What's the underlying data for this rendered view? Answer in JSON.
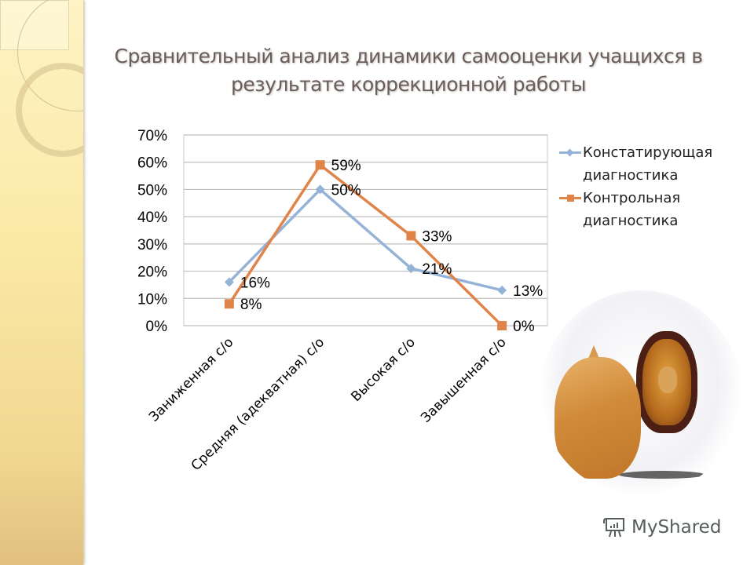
{
  "slide": {
    "title": "Сравнительный анализ динамики самооценки учащихся в результате коррекционной работы",
    "title_line1": "Сравнительный анализ динамики самооценки учащихся в",
    "title_line2": "результате коррекционной работы"
  },
  "legend": {
    "items": [
      {
        "label_line1": "Констатирующая",
        "label_line2": "диагностика",
        "color": "#95b3d7",
        "marker": "diamond"
      },
      {
        "label_line1": "Контрольная",
        "label_line2": "диагностика",
        "color": "#e0844a",
        "marker": "square"
      }
    ]
  },
  "y_axis": {
    "ticks": [
      "0%",
      "10%",
      "20%",
      "30%",
      "40%",
      "50%",
      "60%",
      "70%"
    ]
  },
  "x_axis": {
    "categories": [
      "Заниженная с/о",
      "Средняя (адекватная) с/о",
      "Высокая с/о",
      "Завышенная с/о"
    ]
  },
  "data_labels": {
    "series1": [
      "16%",
      "50%",
      "21%",
      "13%"
    ],
    "series2": [
      "8%",
      "59%",
      "33%",
      "0%"
    ]
  },
  "image": {
    "icon": "kitten-lion-mirror-image"
  },
  "watermark": {
    "text": "MyShared",
    "icon": "presentation-board-icon"
  },
  "chart_data": {
    "type": "line",
    "title": "Сравнительный анализ динамики самооценки учащихся в результате коррекционной работы",
    "categories": [
      "Заниженная с/о",
      "Средняя (адекватная) с/о",
      "Высокая с/о",
      "Завышенная с/о"
    ],
    "series": [
      {
        "name": "Констатирующая диагностика",
        "values": [
          16,
          50,
          21,
          13
        ],
        "color": "#95b3d7",
        "marker": "diamond"
      },
      {
        "name": "Контрольная диагностика",
        "values": [
          8,
          59,
          33,
          0
        ],
        "color": "#e0844a",
        "marker": "square"
      }
    ],
    "xlabel": "",
    "ylabel": "",
    "ylim": [
      0,
      70
    ],
    "yticks": [
      0,
      10,
      20,
      30,
      40,
      50,
      60,
      70
    ],
    "y_format": "percent",
    "grid": true,
    "legend_position": "right",
    "data_labels": true
  }
}
